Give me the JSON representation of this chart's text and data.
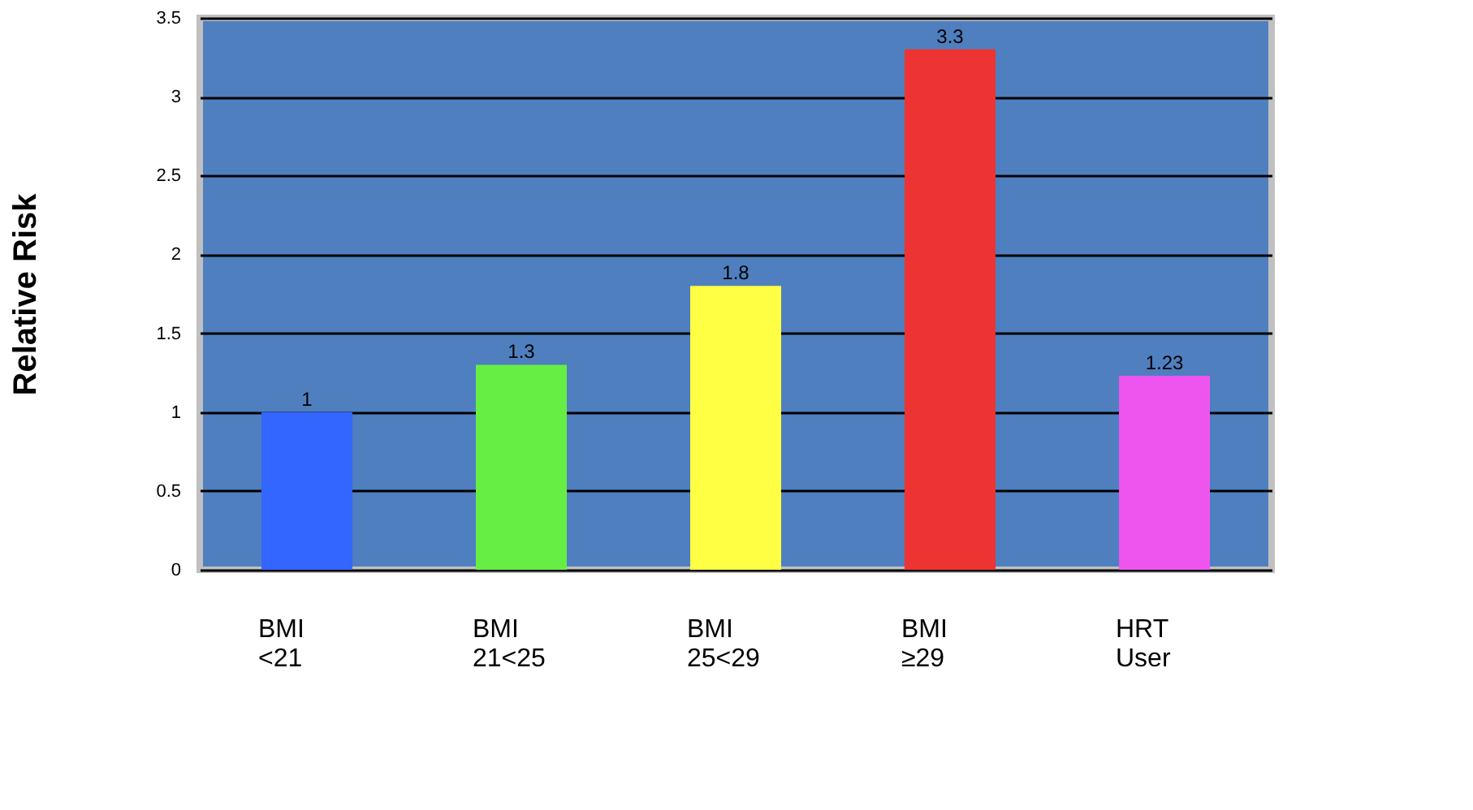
{
  "chart_data": {
    "type": "bar",
    "ylabel": "Relative Risk",
    "categories": [
      "BMI\n<21",
      "BMI\n21<25",
      "BMI\n25<29",
      "BMI\n≥29",
      "HRT\nUser"
    ],
    "values": [
      1,
      1.3,
      1.8,
      3.3,
      1.23
    ],
    "colors": [
      "#3366ff",
      "#66ee44",
      "#ffff44",
      "#ee3333",
      "#ee55ee"
    ],
    "ylim": [
      0,
      3.5
    ],
    "yticks": [
      0,
      0.5,
      1,
      1.5,
      2,
      2.5,
      3,
      3.5
    ],
    "grid": "y",
    "data_labels": true
  }
}
